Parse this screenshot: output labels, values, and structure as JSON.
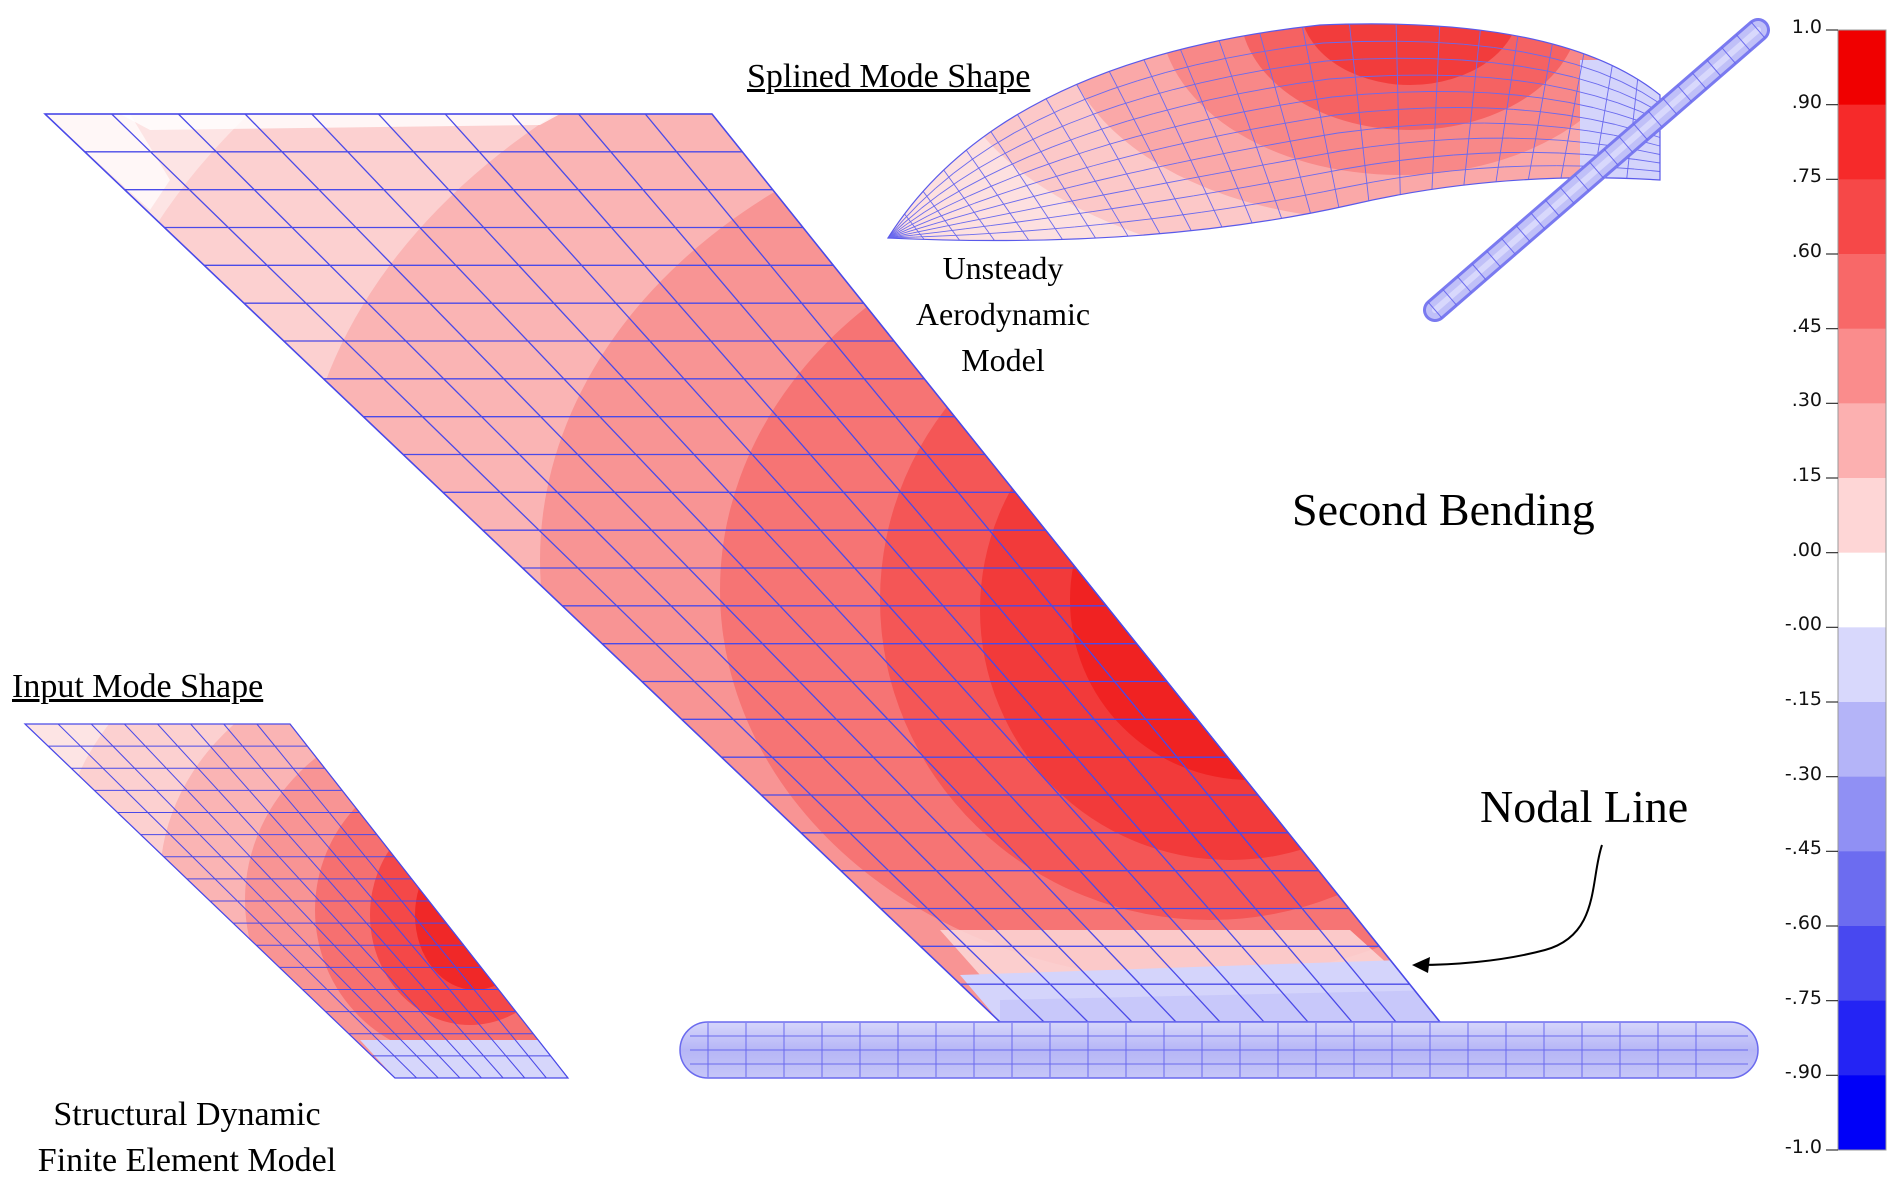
{
  "title": "Second Bending",
  "labels": {
    "splined_mode_shape": "Splined Mode Shape",
    "unsteady_aero_model": [
      "Unsteady",
      "Aerodynamic",
      "Model"
    ],
    "input_mode_shape": "Input Mode Shape",
    "structural_model": [
      "Structural Dynamic",
      "Finite Element Model"
    ],
    "nodal_line": "Nodal Line"
  },
  "color_scale": {
    "ticks": [
      "1.0",
      ".90",
      ".75",
      ".60",
      ".45",
      ".30",
      ".15",
      ".00",
      "-.00",
      "-.15",
      "-.30",
      "-.45",
      "-.60",
      "-.75",
      "-.90",
      "-1.0"
    ],
    "bands": [
      "#f00000",
      "#f62a2a",
      "#f64848",
      "#f86868",
      "#fa8c8c",
      "#fcb0b0",
      "#fed6d6",
      "#ffffff",
      "#d8d8fc",
      "#b4b4f8",
      "#9090f4",
      "#6c6cf0",
      "#4848f0",
      "#2424f4",
      "#0000f8"
    ]
  },
  "colors": {
    "mesh_line": "#4a4ae8",
    "red_max": "#f00000",
    "blue_min": "#0000f8"
  }
}
